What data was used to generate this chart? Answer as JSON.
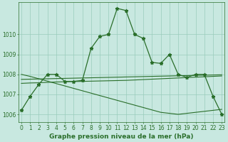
{
  "title": "Graphe pression niveau de la mer (hPa)",
  "background_color": "#c8e8e0",
  "grid_color": "#99ccbb",
  "line_color": "#2a6e2a",
  "hours": [
    0,
    1,
    2,
    3,
    4,
    5,
    6,
    7,
    8,
    9,
    10,
    11,
    12,
    13,
    14,
    15,
    16,
    17,
    18,
    19,
    20,
    21,
    22,
    23
  ],
  "series1": [
    1006.2,
    1006.9,
    1007.5,
    1008.0,
    1008.0,
    1007.65,
    1007.65,
    1007.7,
    1009.3,
    1009.9,
    1010.0,
    1011.3,
    1011.2,
    1010.0,
    1009.8,
    1008.6,
    1008.55,
    1009.0,
    1008.0,
    1007.85,
    1008.0,
    1008.0,
    1006.9,
    1006.0
  ],
  "series_diag": [
    1008.0,
    1007.9,
    1007.78,
    1007.66,
    1007.54,
    1007.42,
    1007.3,
    1007.18,
    1007.06,
    1006.94,
    1006.82,
    1006.7,
    1006.58,
    1006.46,
    1006.34,
    1006.22,
    1006.1,
    1006.05,
    1006.0,
    1006.05,
    1006.1,
    1006.15,
    1006.2,
    1006.25
  ],
  "series_flat1": [
    1007.55,
    1007.57,
    1007.58,
    1007.6,
    1007.62,
    1007.63,
    1007.64,
    1007.65,
    1007.66,
    1007.67,
    1007.68,
    1007.69,
    1007.7,
    1007.72,
    1007.74,
    1007.76,
    1007.78,
    1007.8,
    1007.82,
    1007.84,
    1007.86,
    1007.88,
    1007.9,
    1007.92
  ],
  "series_flat2": [
    1007.75,
    1007.76,
    1007.77,
    1007.78,
    1007.79,
    1007.8,
    1007.81,
    1007.82,
    1007.83,
    1007.84,
    1007.85,
    1007.86,
    1007.87,
    1007.88,
    1007.89,
    1007.9,
    1007.91,
    1007.92,
    1007.93,
    1007.94,
    1007.95,
    1007.96,
    1007.97,
    1007.98
  ],
  "ylim": [
    1005.6,
    1011.6
  ],
  "yticks": [
    1006,
    1007,
    1008,
    1009,
    1010
  ],
  "title_fontsize": 6.5,
  "tick_fontsize": 5.5
}
